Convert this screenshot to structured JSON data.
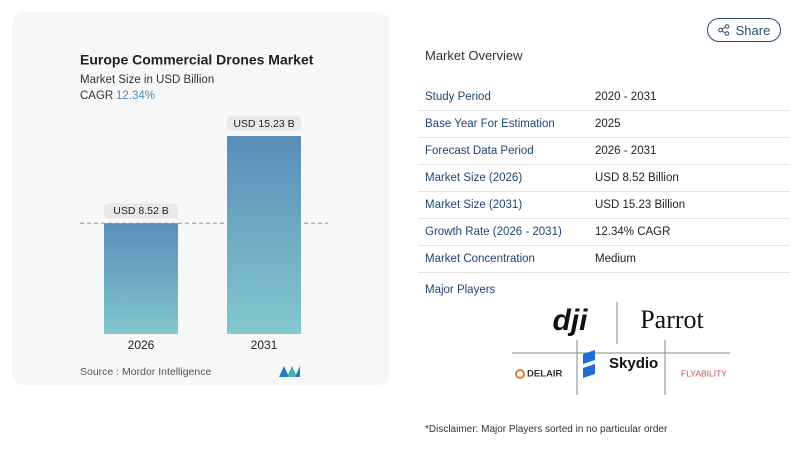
{
  "chart_data": {
    "type": "bar",
    "title": "Europe Commercial Drones Market",
    "subtitle": "Market Size in USD Billion",
    "cagr_label": "CAGR",
    "cagr_value": "12.34%",
    "categories": [
      "2026",
      "2031"
    ],
    "values": [
      8.52,
      15.23
    ],
    "value_labels": [
      "USD 8.52 B",
      "USD 15.23 B"
    ],
    "gradient": [
      "#5a8db8",
      "#82c8cd"
    ],
    "source": "Source :  Mordor Intelligence"
  },
  "share": "Share",
  "overview": {
    "title": "Market Overview",
    "rows": [
      [
        "Study Period",
        "2020 - 2031"
      ],
      [
        "Base Year For Estimation",
        "2025"
      ],
      [
        "Forecast Data Period",
        "2026 - 2031"
      ],
      [
        "Market Size (2026)",
        "USD 8.52 Billion"
      ],
      [
        "Market Size (2031)",
        "USD 15.23 Billion"
      ],
      [
        "Growth Rate (2026 - 2031)",
        "12.34% CAGR"
      ],
      [
        "Market Concentration",
        "Medium"
      ]
    ],
    "major_players": "Major Players",
    "players": [
      "dji",
      "Parrot",
      "Skydio",
      "DELAIR",
      "FLYABILITY"
    ],
    "disclaimer": "*Disclaimer: Major Players sorted in no particular order"
  }
}
